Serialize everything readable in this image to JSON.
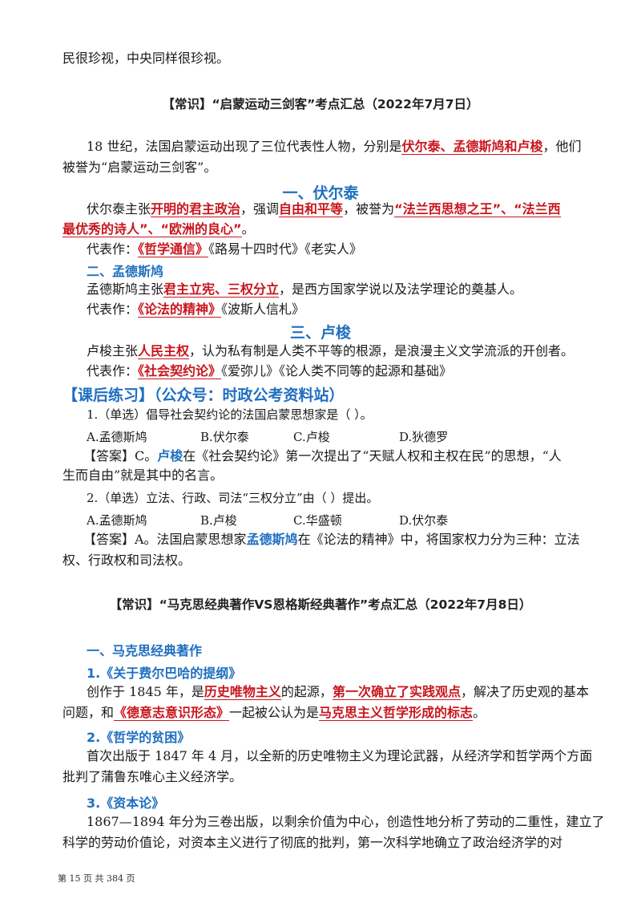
{
  "p0": "民很珍视，中央同样很珍视。",
  "s1": {
    "title": "【常识】“启蒙运动三剑客”考点汇总（2022年7月7日）",
    "intro_a": "18 世纪，法国启蒙运动出现了三位代表性人物，分别是",
    "intro_b": "伏尔泰、孟德斯鸠和卢梭",
    "intro_c": "，他们",
    "intro2": "被誉为“启蒙运动三剑客”。",
    "h1": "一、伏尔泰",
    "v_a": "伏尔泰主张",
    "v_b": "开明的君主政治",
    "v_c": "，强调",
    "v_d": "自由和平等",
    "v_e": "，被誉为",
    "v_f": "“法兰西思想之王”、“法兰西",
    "v2_a": "最优秀的诗人”、“欧洲的良心”",
    "v2_b": "。",
    "v_works_a": "代表作：",
    "v_works_b": "《哲学通信》",
    "v_works_c": "《路易十四时代》《老实人》",
    "h2": "二、孟德斯鸠",
    "m_a": "孟德斯鸠主张",
    "m_b": "君主立宪、三权分立",
    "m_c": "，是西方国家学说以及法学理论的奠基人。",
    "m_works_a": "代表作：",
    "m_works_b": "《论法的精神》",
    "m_works_c": "《波斯人信札》",
    "h3": "三、卢梭",
    "r_a": "卢梭主张",
    "r_b": "人民主权",
    "r_c": "，认为私有制是人类不平等的根源，是浪漫主义文学流派的开创者。",
    "r_works_a": "代表作：",
    "r_works_b": "《社会契约论》",
    "r_works_c": "《爱弥儿》《论人类不同等的起源和基础》"
  },
  "practice": {
    "title": "【课后练习】（公众号：时政公考资料站）",
    "q1": "1.（单选）倡导社会契约论的法国启蒙思想家是（    ）。",
    "q1_opts": [
      "A.孟德斯鸠",
      "B.伏尔泰",
      "C.卢梭",
      "D.狄德罗"
    ],
    "a1_a": "【答案】C。",
    "a1_b": "卢梭",
    "a1_c": "在《社会契约论》第一次提出了“天赋人权和主权在民”的思想，“人",
    "a1_2": "生而自由”就是其中的名言。",
    "q2": "2.（单选）立法、行政、司法“三权分立”由（    ）提出。",
    "q2_opts": [
      "A.孟德斯鸠",
      "B.卢梭",
      "C.华盛顿",
      "D.伏尔泰"
    ],
    "a2_a": "【答案】A。法国启蒙思想家",
    "a2_b": "孟德斯鸠",
    "a2_c": "在《论法的精神》中，将国家权力分为三种：立法",
    "a2_2": "权、行政权和司法权。"
  },
  "s2": {
    "title": "【常识】“马克思经典著作VS恩格斯经典著作”考点汇总（2022年7月8日）",
    "h1": "一、马克思经典著作",
    "w1": "1.《关于费尔巴哈的提纲》",
    "w1_a": "创作于 1845 年，是",
    "w1_b": "历史唯物主义",
    "w1_c": "的起源，",
    "w1_d": "第一次确立了实践观点",
    "w1_e": "，解决了历史观的基本",
    "w1_2a": "问题，和",
    "w1_2b": "《德意志意识形态》",
    "w1_2c": "一起被公认为是",
    "w1_2d": "马克思主义哲学形成的标志",
    "w1_2e": "。",
    "w2": "2.《哲学的贫困》",
    "w2_a": "首次出版于 1847 年 4 月，以全新的历史唯物主义为理论武器，从经济学和哲学两个方面",
    "w2_b": "批判了蒲鲁东唯心主义经济学。",
    "w3": "3.《资本论》",
    "w3_a": "1867—1894 年分为三卷出版，以剩余价值为中心，创造性地分析了劳动的二重性，建立了",
    "w3_b": "科学的劳动价值论，对资本主义进行了彻底的批判，第一次科学地确立了政治经济学的对"
  },
  "footer": "第 15 页 共 384 页"
}
